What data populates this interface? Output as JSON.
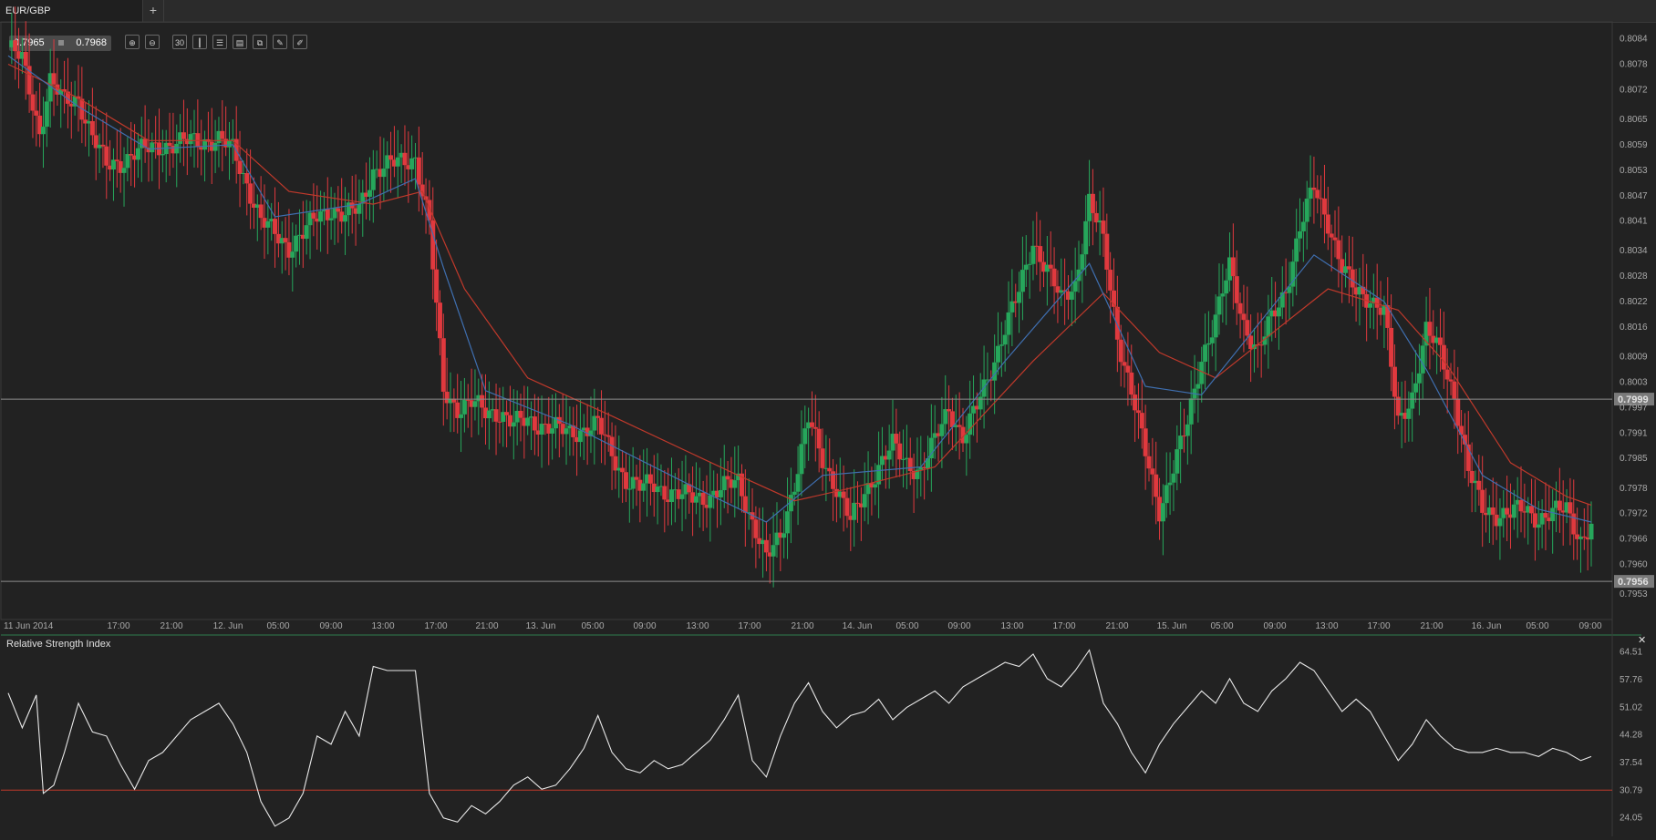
{
  "tab": {
    "label": "EUR/GBP",
    "add_label": "+"
  },
  "quote": {
    "bid": "0.7965",
    "ask": "0.7968"
  },
  "toolbar": {
    "tools": [
      {
        "name": "zoom-in-icon",
        "glyph": "⊕"
      },
      {
        "name": "zoom-out-icon",
        "glyph": "⊖"
      },
      {
        "name": "timeframe-button",
        "glyph": "30"
      },
      {
        "name": "candlestick-type-icon",
        "glyph": "┃"
      },
      {
        "name": "indicators-icon",
        "glyph": "☰"
      },
      {
        "name": "chart-settings-icon",
        "glyph": "▤"
      },
      {
        "name": "link-icon",
        "glyph": "⧉"
      },
      {
        "name": "edit-icon",
        "glyph": "✎"
      },
      {
        "name": "draw-icon",
        "glyph": "✐"
      }
    ]
  },
  "colors": {
    "background": "#222222",
    "up": "#26a65b",
    "down": "#e0393e",
    "sma_fast": "#3f6fb0",
    "sma_slow": "#c0392b",
    "rsi_line": "#e8e8e8",
    "rsi_level": "#c0392b",
    "hline": "#8c8c8c"
  },
  "rsi_panel": {
    "title": "Relative Strength Index",
    "close_label": "✕"
  },
  "chart_data": [
    {
      "type": "candlestick",
      "symbol": "EUR/GBP",
      "ylim": [
        0.7947,
        0.8088
      ],
      "y_ticks": [
        "0.8084",
        "0.8078",
        "0.8072",
        "0.8065",
        "0.8059",
        "0.8053",
        "0.8047",
        "0.8041",
        "0.8034",
        "0.8028",
        "0.8022",
        "0.8016",
        "0.8009",
        "0.8003",
        "0.7997",
        "0.7991",
        "0.7985",
        "0.7978",
        "0.7972",
        "0.7966",
        "0.7960",
        "0.7953"
      ],
      "x_labels": [
        "11 Jun 2014",
        "17:00",
        "21:00",
        "12. Jun",
        "05:00",
        "09:00",
        "13:00",
        "17:00",
        "21:00",
        "13. Jun",
        "05:00",
        "09:00",
        "13:00",
        "17:00",
        "21:00",
        "14. Jun",
        "05:00",
        "09:00",
        "13:00",
        "17:00",
        "21:00",
        "15. Jun",
        "05:00",
        "09:00",
        "13:00",
        "17:00",
        "21:00",
        "16. Jun",
        "05:00",
        "09:00"
      ],
      "horizontal_lines": [
        {
          "value": 0.7999,
          "label": "0.7999"
        },
        {
          "value": 0.7956,
          "label": "0.7956"
        }
      ],
      "close_path": [
        [
          0,
          0.8082
        ],
        [
          4,
          0.8079
        ],
        [
          9,
          0.8062
        ],
        [
          12,
          0.8074
        ],
        [
          16,
          0.8069
        ],
        [
          20,
          0.807
        ],
        [
          24,
          0.8061
        ],
        [
          28,
          0.8054
        ],
        [
          32,
          0.8055
        ],
        [
          36,
          0.8057
        ],
        [
          40,
          0.8058
        ],
        [
          44,
          0.8059
        ],
        [
          48,
          0.8059
        ],
        [
          52,
          0.806
        ],
        [
          56,
          0.806
        ],
        [
          60,
          0.806
        ],
        [
          64,
          0.8058
        ],
        [
          68,
          0.805
        ],
        [
          72,
          0.8041
        ],
        [
          76,
          0.8038
        ],
        [
          80,
          0.8035
        ],
        [
          84,
          0.8038
        ],
        [
          88,
          0.8042
        ],
        [
          92,
          0.8044
        ],
        [
          96,
          0.8042
        ],
        [
          100,
          0.8044
        ],
        [
          104,
          0.8053
        ],
        [
          108,
          0.8054
        ],
        [
          112,
          0.8055
        ],
        [
          116,
          0.8056
        ],
        [
          120,
          0.804
        ],
        [
          124,
          0.8001
        ],
        [
          128,
          0.7997
        ],
        [
          132,
          0.7998
        ],
        [
          136,
          0.7996
        ],
        [
          140,
          0.7996
        ],
        [
          144,
          0.7993
        ],
        [
          148,
          0.7994
        ],
        [
          152,
          0.7993
        ],
        [
          156,
          0.7992
        ],
        [
          160,
          0.7991
        ],
        [
          164,
          0.7992
        ],
        [
          168,
          0.7993
        ],
        [
          172,
          0.7986
        ],
        [
          176,
          0.798
        ],
        [
          180,
          0.7978
        ],
        [
          184,
          0.7979
        ],
        [
          188,
          0.7977
        ],
        [
          192,
          0.7976
        ],
        [
          196,
          0.7976
        ],
        [
          200,
          0.7976
        ],
        [
          204,
          0.7978
        ],
        [
          208,
          0.798
        ],
        [
          212,
          0.797
        ],
        [
          216,
          0.7961
        ],
        [
          220,
          0.7967
        ],
        [
          224,
          0.7979
        ],
        [
          228,
          0.7994
        ],
        [
          232,
          0.7985
        ],
        [
          236,
          0.7978
        ],
        [
          240,
          0.797
        ],
        [
          244,
          0.7977
        ],
        [
          248,
          0.7983
        ],
        [
          252,
          0.7988
        ],
        [
          256,
          0.7984
        ],
        [
          260,
          0.7982
        ],
        [
          264,
          0.7989
        ],
        [
          268,
          0.7997
        ],
        [
          272,
          0.799
        ],
        [
          276,
          0.7997
        ],
        [
          280,
          0.8006
        ],
        [
          284,
          0.8016
        ],
        [
          288,
          0.8024
        ],
        [
          292,
          0.8036
        ],
        [
          296,
          0.803
        ],
        [
          300,
          0.8022
        ],
        [
          304,
          0.8026
        ],
        [
          308,
          0.8046
        ],
        [
          312,
          0.8036
        ],
        [
          316,
          0.8014
        ],
        [
          320,
          0.8001
        ],
        [
          324,
          0.7986
        ],
        [
          328,
          0.7973
        ],
        [
          332,
          0.7983
        ],
        [
          336,
          0.7993
        ],
        [
          340,
          0.8009
        ],
        [
          344,
          0.8018
        ],
        [
          348,
          0.803
        ],
        [
          352,
          0.8017
        ],
        [
          356,
          0.801
        ],
        [
          360,
          0.8018
        ],
        [
          364,
          0.8025
        ],
        [
          368,
          0.8039
        ],
        [
          372,
          0.8049
        ],
        [
          376,
          0.8041
        ],
        [
          380,
          0.803
        ],
        [
          384,
          0.8024
        ],
        [
          388,
          0.8023
        ],
        [
          392,
          0.802
        ],
        [
          396,
          0.7993
        ],
        [
          400,
          0.8
        ],
        [
          404,
          0.8015
        ],
        [
          408,
          0.801
        ],
        [
          412,
          0.8
        ],
        [
          416,
          0.7982
        ],
        [
          420,
          0.7973
        ],
        [
          424,
          0.7972
        ],
        [
          428,
          0.7972
        ],
        [
          432,
          0.7973
        ],
        [
          436,
          0.7971
        ],
        [
          440,
          0.7972
        ],
        [
          444,
          0.7973
        ],
        [
          448,
          0.7966
        ],
        [
          451,
          0.7969
        ]
      ],
      "sma_fast": [
        [
          0,
          0.808
        ],
        [
          20,
          0.8068
        ],
        [
          40,
          0.8058
        ],
        [
          64,
          0.8059
        ],
        [
          76,
          0.8042
        ],
        [
          100,
          0.8045
        ],
        [
          116,
          0.8051
        ],
        [
          124,
          0.803
        ],
        [
          136,
          0.8001
        ],
        [
          160,
          0.7993
        ],
        [
          196,
          0.7978
        ],
        [
          216,
          0.797
        ],
        [
          232,
          0.7981
        ],
        [
          260,
          0.7983
        ],
        [
          284,
          0.8008
        ],
        [
          308,
          0.8031
        ],
        [
          324,
          0.8002
        ],
        [
          340,
          0.8
        ],
        [
          372,
          0.8033
        ],
        [
          392,
          0.8022
        ],
        [
          404,
          0.8006
        ],
        [
          420,
          0.7981
        ],
        [
          436,
          0.7973
        ],
        [
          451,
          0.797
        ]
      ],
      "sma_slow": [
        [
          0,
          0.8078
        ],
        [
          20,
          0.807
        ],
        [
          40,
          0.806
        ],
        [
          64,
          0.806
        ],
        [
          80,
          0.8048
        ],
        [
          104,
          0.8045
        ],
        [
          118,
          0.8048
        ],
        [
          130,
          0.8025
        ],
        [
          148,
          0.8004
        ],
        [
          172,
          0.7995
        ],
        [
          208,
          0.7981
        ],
        [
          224,
          0.7975
        ],
        [
          240,
          0.7978
        ],
        [
          264,
          0.7983
        ],
        [
          292,
          0.8008
        ],
        [
          312,
          0.8024
        ],
        [
          328,
          0.801
        ],
        [
          344,
          0.8004
        ],
        [
          376,
          0.8025
        ],
        [
          396,
          0.802
        ],
        [
          410,
          0.8007
        ],
        [
          428,
          0.7984
        ],
        [
          444,
          0.7976
        ],
        [
          451,
          0.7974
        ]
      ]
    },
    {
      "type": "line",
      "title": "Relative Strength Index",
      "ylim": [
        19.5,
        68
      ],
      "y_ticks": [
        "64.51",
        "57.76",
        "51.02",
        "44.28",
        "37.54",
        "30.79",
        "24.05"
      ],
      "level": 30.79,
      "series": [
        {
          "values": [
            [
              0,
              54.5
            ],
            [
              4,
              46
            ],
            [
              8,
              54
            ],
            [
              10,
              30
            ],
            [
              13,
              32
            ],
            [
              16,
              40
            ],
            [
              20,
              52
            ],
            [
              24,
              45
            ],
            [
              28,
              44
            ],
            [
              32,
              37
            ],
            [
              36,
              31
            ],
            [
              40,
              38
            ],
            [
              44,
              40
            ],
            [
              48,
              44
            ],
            [
              52,
              48
            ],
            [
              56,
              50
            ],
            [
              60,
              52
            ],
            [
              64,
              47
            ],
            [
              68,
              40
            ],
            [
              72,
              28
            ],
            [
              76,
              22
            ],
            [
              80,
              24
            ],
            [
              84,
              30
            ],
            [
              88,
              44
            ],
            [
              92,
              42
            ],
            [
              96,
              50
            ],
            [
              100,
              44
            ],
            [
              104,
              61
            ],
            [
              108,
              60
            ],
            [
              112,
              60
            ],
            [
              116,
              60
            ],
            [
              120,
              30
            ],
            [
              124,
              24
            ],
            [
              128,
              23
            ],
            [
              132,
              27
            ],
            [
              136,
              25
            ],
            [
              140,
              28
            ],
            [
              144,
              32
            ],
            [
              148,
              34
            ],
            [
              152,
              31
            ],
            [
              156,
              32
            ],
            [
              160,
              36
            ],
            [
              164,
              41
            ],
            [
              168,
              49
            ],
            [
              172,
              40
            ],
            [
              176,
              36
            ],
            [
              180,
              35
            ],
            [
              184,
              38
            ],
            [
              188,
              36
            ],
            [
              192,
              37
            ],
            [
              196,
              40
            ],
            [
              200,
              43
            ],
            [
              204,
              48
            ],
            [
              208,
              54
            ],
            [
              212,
              38
            ],
            [
              216,
              34
            ],
            [
              220,
              44
            ],
            [
              224,
              52
            ],
            [
              228,
              57
            ],
            [
              232,
              50
            ],
            [
              236,
              46
            ],
            [
              240,
              49
            ],
            [
              244,
              50
            ],
            [
              248,
              53
            ],
            [
              252,
              48
            ],
            [
              256,
              51
            ],
            [
              260,
              53
            ],
            [
              264,
              55
            ],
            [
              268,
              52
            ],
            [
              272,
              56
            ],
            [
              276,
              58
            ],
            [
              280,
              60
            ],
            [
              284,
              62
            ],
            [
              288,
              61
            ],
            [
              292,
              64
            ],
            [
              296,
              58
            ],
            [
              300,
              56
            ],
            [
              304,
              60
            ],
            [
              308,
              65
            ],
            [
              312,
              52
            ],
            [
              316,
              47
            ],
            [
              320,
              40
            ],
            [
              324,
              35
            ],
            [
              328,
              42
            ],
            [
              332,
              47
            ],
            [
              336,
              51
            ],
            [
              340,
              55
            ],
            [
              344,
              52
            ],
            [
              348,
              58
            ],
            [
              352,
              52
            ],
            [
              356,
              50
            ],
            [
              360,
              55
            ],
            [
              364,
              58
            ],
            [
              368,
              62
            ],
            [
              372,
              60
            ],
            [
              376,
              55
            ],
            [
              380,
              50
            ],
            [
              384,
              53
            ],
            [
              388,
              50
            ],
            [
              392,
              44
            ],
            [
              396,
              38
            ],
            [
              400,
              42
            ],
            [
              404,
              48
            ],
            [
              408,
              44
            ],
            [
              412,
              41
            ],
            [
              416,
              40
            ],
            [
              420,
              40
            ],
            [
              424,
              41
            ],
            [
              428,
              40
            ],
            [
              432,
              40
            ],
            [
              436,
              39
            ],
            [
              440,
              41
            ],
            [
              444,
              40
            ],
            [
              448,
              38
            ],
            [
              451,
              39
            ]
          ]
        }
      ]
    }
  ]
}
